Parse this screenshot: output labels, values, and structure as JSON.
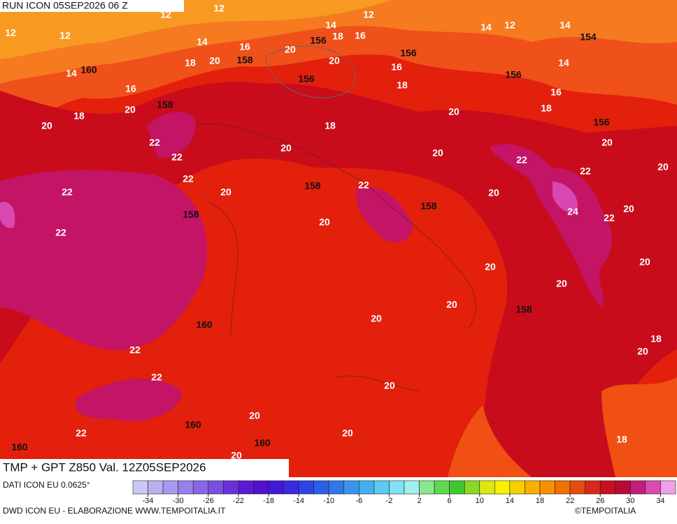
{
  "header": {
    "run": "RUN ICON 05SEP2026 06 Z"
  },
  "map": {
    "title": "TMP + GPT Z850 Val. 12Z05SEP2026",
    "temperature_labels": [
      12,
      12,
      12,
      12,
      12,
      12,
      14,
      14,
      14,
      14,
      16,
      18,
      16,
      20,
      14,
      18,
      20,
      20,
      16,
      14,
      18,
      16,
      16,
      20,
      20,
      18,
      18,
      20,
      18,
      20,
      22,
      20,
      20,
      22,
      22,
      20,
      22,
      22,
      22,
      20,
      22,
      20,
      20,
      24,
      22,
      22,
      20,
      20,
      20,
      20,
      20,
      20,
      18,
      22,
      20,
      22,
      20,
      20,
      20,
      22,
      18,
      20
    ],
    "geopotential_labels": [
      154,
      156,
      156,
      160,
      158,
      156,
      156,
      158,
      156,
      158,
      158,
      158,
      158,
      160,
      160,
      160,
      160
    ]
  },
  "colorbar": {
    "ticks": [
      -34,
      -30,
      -26,
      -22,
      -18,
      -14,
      -10,
      -6,
      -2,
      2,
      6,
      10,
      14,
      18,
      22,
      26,
      30,
      34
    ],
    "colors": [
      "#c9c8f5",
      "#b8b0f0",
      "#a898ee",
      "#9680ea",
      "#8866e6",
      "#7a4ee0",
      "#6a30d8",
      "#5c1ad0",
      "#5010cc",
      "#4418d8",
      "#3a2ae0",
      "#2e44e4",
      "#2a5ee8",
      "#3078ea",
      "#3a94ec",
      "#44b0f0",
      "#5ccaf2",
      "#80e0f4",
      "#a0f0f0",
      "#88e890",
      "#60d850",
      "#40c830",
      "#8cd820",
      "#d8e810",
      "#f8f000",
      "#f8d000",
      "#f8b000",
      "#f89000",
      "#f07000",
      "#e84a10",
      "#d82818",
      "#c81020",
      "#b80838",
      "#c0207a",
      "#d84cb0",
      "#f0a0e8"
    ]
  },
  "footer": {
    "data_source": "DATI ICON EU 0.0625°",
    "credit": "DWD ICON EU - ELABORAZIONE WWW.TEMPOITALIA.IT",
    "copyright": "©TEMPOITALIA"
  }
}
